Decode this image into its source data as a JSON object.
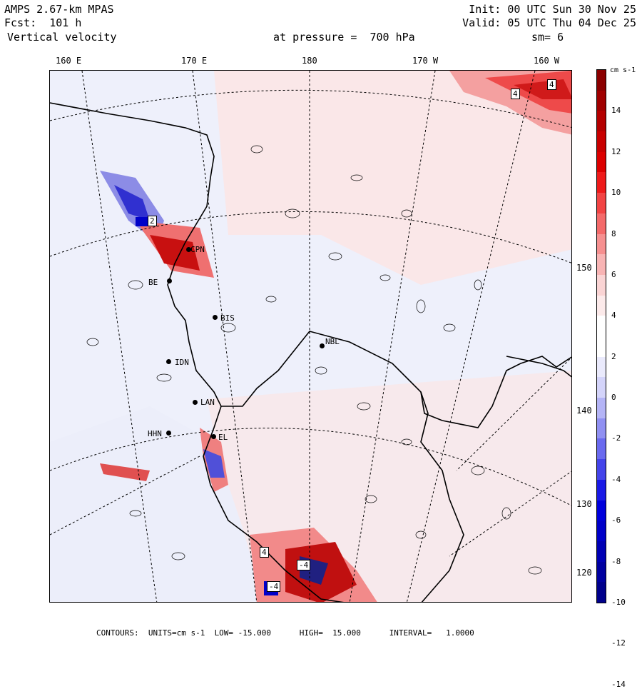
{
  "header": {
    "model": "AMPS 2.67-km MPAS",
    "forecast": "Fcst:  101 h",
    "field": "Vertical velocity",
    "init": "Init: 00 UTC Sun 30 Nov 25",
    "valid": "Valid: 05 UTC Thu 04 Dec 25",
    "level": "at pressure =  700 hPa",
    "smoothing": "sm= 6"
  },
  "longitude_labels": [
    "160 E",
    "170 E",
    "180",
    "170 W",
    "160 W"
  ],
  "latitude_labels": [
    "150 W",
    "140 W",
    "130 W",
    "120 W"
  ],
  "stations": [
    {
      "id": "CPN",
      "label": "CPN"
    },
    {
      "id": "BE",
      "label": "BE"
    },
    {
      "id": "BIS",
      "label": "BIS"
    },
    {
      "id": "NBL",
      "label": "NBL"
    },
    {
      "id": "IDN",
      "label": "IDN"
    },
    {
      "id": "LAN",
      "label": "LAN"
    },
    {
      "id": "HHN",
      "label": "HHN"
    },
    {
      "id": "EL",
      "label": "EL"
    }
  ],
  "contour_labels": [
    "2",
    "4",
    "4",
    "-4",
    "-4",
    "4"
  ],
  "colorbar": {
    "unit": "cm s-1",
    "tick_labels": [
      "14",
      "12",
      "10",
      "8",
      "6",
      "4",
      "2",
      "0",
      "-2",
      "-4",
      "-6",
      "-8",
      "-10",
      "-12",
      "-14"
    ],
    "colors": [
      "#8b0000",
      "#a00000",
      "#b40000",
      "#c80000",
      "#dc0000",
      "#ee1a1a",
      "#f24444",
      "#f46a6a",
      "#f69090",
      "#f8b4b4",
      "#fad4d4",
      "#fceaea",
      "#ffffff",
      "#ffffff",
      "#eaeafc",
      "#d4d4fa",
      "#b4b4f6",
      "#9090f2",
      "#6a6aef",
      "#4444ea",
      "#1a1ae6",
      "#0000dc",
      "#0000c8",
      "#0000b4",
      "#0000a0",
      "#00008b"
    ]
  },
  "footer": "CONTOURS:  UNITS=cm s-1  LOW= -15.000      HIGH=  15.000      INTERVAL=   1.0000"
}
